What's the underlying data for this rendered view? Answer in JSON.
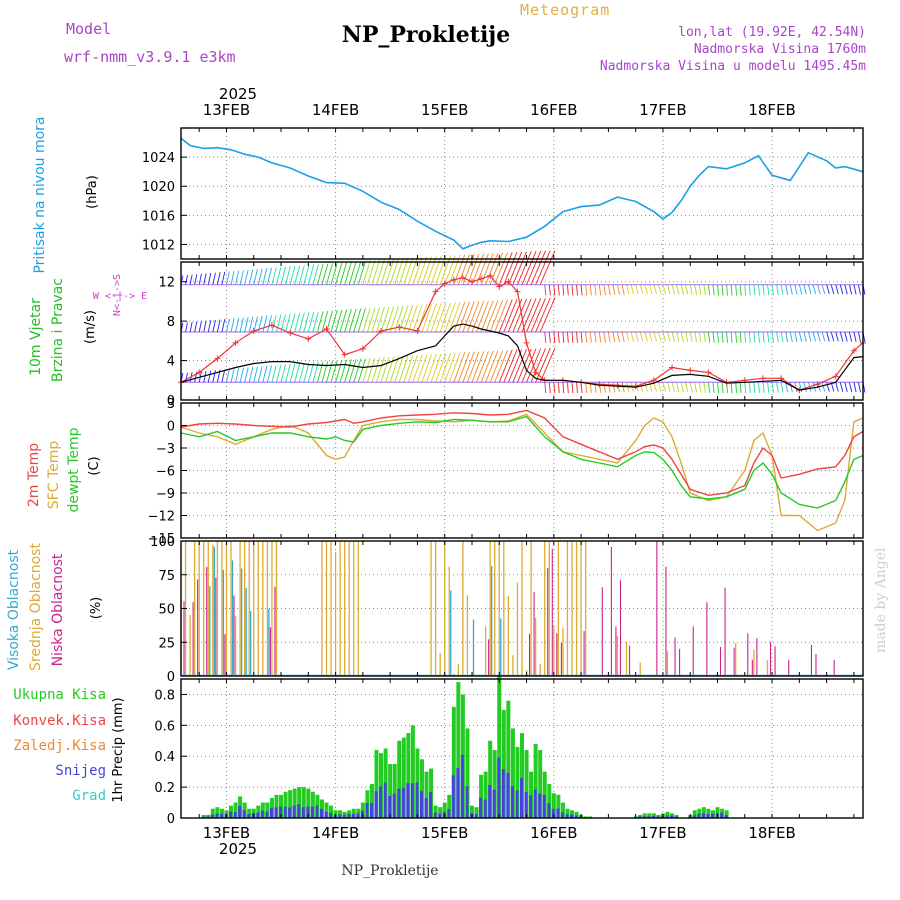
{
  "header": {
    "title": "NP_Prokletije",
    "product": "Meteogram",
    "model_label": "Model",
    "model_name": "wrf-nmm_v3.9.1 e3km",
    "lonlat": "lon,lat (19.92E, 42.54N)",
    "elevation": "Nadmorska Visina 1760m",
    "model_elevation": "Nadmorska Visina u modelu 1495.45m",
    "year_top": "2025",
    "year_bottom": "2025",
    "footer": "NP_Prokletije",
    "watermark": "made by Angel"
  },
  "colors": {
    "pressure": "#1aa0e6",
    "wind_label": "#22c022",
    "wind_dir_label": "#cc44cc",
    "temp2m": "#ee4444",
    "sfc": "#ddaa33",
    "dewpt": "#22cc22",
    "high_cloud": "#33aacc",
    "mid_cloud": "#ddaa33",
    "low_cloud": "#cc2288",
    "total_precip": "#22cc22",
    "conv_precip": "#ee4444",
    "frozen_precip": "#ee8833",
    "snow": "#4444dd",
    "hail": "#33cccc",
    "purple_text": "#aa44cc",
    "orange_text": "#e0b040"
  },
  "chart_data": [
    {
      "type": "line",
      "name": "pressure",
      "ylabel": "Pritisak na nivou mora",
      "unit": "(hPa)",
      "ylim": [
        1010,
        1028
      ],
      "yticks": [
        1012,
        1016,
        1020,
        1024
      ],
      "x_days": [
        "13FEB",
        "14FEB",
        "15FEB",
        "16FEB",
        "17FEB",
        "18FEB"
      ],
      "x": [
        0,
        2,
        5,
        8,
        11,
        14,
        17,
        20,
        24,
        28,
        32,
        36,
        40,
        44,
        48,
        52,
        56,
        60,
        62,
        64,
        66,
        68,
        72,
        76,
        80,
        84,
        88,
        92,
        96,
        100,
        104,
        106,
        108,
        110,
        112,
        114,
        116,
        120,
        124,
        127,
        130,
        134,
        138,
        142,
        144,
        146,
        150
      ],
      "values": [
        1026.6,
        1025.6,
        1025.2,
        1025.3,
        1025.0,
        1024.4,
        1024.0,
        1023.2,
        1022.5,
        1021.4,
        1020.5,
        1020.4,
        1019.3,
        1017.8,
        1016.8,
        1015.2,
        1013.8,
        1012.6,
        1011.4,
        1011.9,
        1012.3,
        1012.5,
        1012.4,
        1013.0,
        1014.5,
        1016.5,
        1017.2,
        1017.4,
        1018.5,
        1017.9,
        1016.5,
        1015.5,
        1016.4,
        1018.0,
        1020.0,
        1021.5,
        1022.7,
        1022.4,
        1023.2,
        1024.2,
        1021.5,
        1020.8,
        1024.6,
        1023.5,
        1022.5,
        1022.7,
        1022.0
      ]
    },
    {
      "type": "line",
      "name": "wind",
      "ylabel1": "10m Vjetar",
      "ylabel2": "Brzina i Pravac",
      "unit": "(m/s)",
      "direction_legend": "W <-|-> E",
      "direction_legend_v": "N<-|->S",
      "ylim": [
        0,
        14
      ],
      "yticks": [
        0,
        4,
        8,
        12
      ],
      "x": [
        0,
        4,
        8,
        12,
        16,
        20,
        24,
        28,
        32,
        36,
        40,
        44,
        48,
        52,
        56,
        58,
        60,
        62,
        64,
        66,
        68,
        70,
        72,
        74,
        76,
        78,
        80,
        84,
        88,
        92,
        96,
        100,
        104,
        108,
        112,
        116,
        120,
        124,
        128,
        132,
        136,
        140,
        144,
        148,
        150
      ],
      "speed": [
        1.8,
        2.3,
        2.8,
        3.3,
        3.7,
        3.9,
        3.9,
        3.6,
        3.5,
        3.6,
        3.3,
        3.5,
        4.2,
        5.0,
        5.5,
        6.5,
        7.5,
        7.7,
        7.5,
        7.2,
        7.0,
        6.8,
        6.5,
        5.5,
        3.0,
        2.2,
        2.0,
        2.0,
        1.8,
        1.5,
        1.4,
        1.3,
        1.7,
        2.5,
        2.6,
        2.4,
        1.7,
        1.8,
        1.9,
        2.0,
        1.0,
        1.3,
        1.8,
        4.3,
        4.4
      ],
      "gust": [
        1.8,
        2.8,
        4.2,
        5.8,
        7.0,
        7.6,
        6.8,
        6.2,
        7.2,
        4.6,
        5.2,
        7.0,
        7.4,
        7.0,
        11.0,
        11.8,
        12.2,
        12.4,
        12.0,
        12.3,
        12.6,
        11.5,
        12.0,
        11.0,
        5.8,
        2.8,
        2.0,
        2.0,
        1.8,
        1.6,
        1.5,
        1.4,
        2.0,
        3.3,
        3.0,
        2.8,
        1.8,
        2.0,
        2.2,
        2.2,
        1.0,
        1.6,
        2.4,
        5.0,
        5.8
      ]
    },
    {
      "type": "line",
      "name": "temperature",
      "labels": [
        "2m Temp",
        "SFC Temp",
        "dewpt Temp"
      ],
      "unit": "(C)",
      "ylim": [
        -15,
        3
      ],
      "yticks": [
        -15,
        -12,
        -9,
        -6,
        -3,
        0,
        3
      ],
      "x": [
        0,
        4,
        8,
        12,
        16,
        20,
        24,
        28,
        32,
        34,
        36,
        38,
        40,
        44,
        48,
        52,
        56,
        60,
        64,
        68,
        72,
        76,
        80,
        84,
        88,
        92,
        96,
        100,
        102,
        104,
        106,
        108,
        110,
        112,
        116,
        120,
        124,
        126,
        128,
        130,
        132,
        136,
        140,
        144,
        146,
        148,
        150
      ],
      "temp2m": [
        -0.2,
        0.2,
        0.3,
        0.2,
        0.0,
        -0.1,
        -0.2,
        0.2,
        0.4,
        0.6,
        0.8,
        0.3,
        0.5,
        1.0,
        1.3,
        1.4,
        1.5,
        1.7,
        1.6,
        1.4,
        1.5,
        2.0,
        1.0,
        -1.5,
        -2.5,
        -3.5,
        -4.5,
        -3.5,
        -2.8,
        -2.6,
        -3.0,
        -4.5,
        -6.5,
        -8.5,
        -9.3,
        -9.0,
        -8.0,
        -5.0,
        -3.0,
        -4.0,
        -7.0,
        -6.5,
        -5.8,
        -5.5,
        -4.0,
        -1.5,
        -0.8
      ],
      "sfc": [
        -0.2,
        -1.0,
        -1.5,
        -2.5,
        -1.5,
        -0.5,
        0.0,
        -1.0,
        -4.0,
        -4.5,
        -4.2,
        -2.0,
        0.0,
        0.5,
        0.8,
        0.8,
        0.6,
        0.5,
        0.7,
        0.5,
        0.6,
        1.5,
        -1.0,
        -3.5,
        -4.0,
        -4.5,
        -5.0,
        -2.0,
        0.0,
        1.0,
        0.5,
        -1.5,
        -5.0,
        -9.0,
        -10.0,
        -9.5,
        -6.0,
        -2.0,
        -1.0,
        -4.0,
        -12.0,
        -12.0,
        -14.0,
        -13.0,
        -10.0,
        0.5,
        1.0
      ],
      "dewpt": [
        -1.0,
        -1.5,
        -0.8,
        -2.0,
        -1.5,
        -1.0,
        -1.0,
        -1.5,
        -1.8,
        -1.5,
        -2.0,
        -2.2,
        -0.5,
        0.0,
        0.3,
        0.5,
        0.4,
        0.8,
        0.7,
        0.5,
        0.5,
        1.2,
        -1.5,
        -3.5,
        -4.5,
        -5.0,
        -5.5,
        -4.0,
        -3.5,
        -3.6,
        -4.5,
        -6.0,
        -8.0,
        -9.5,
        -9.8,
        -9.5,
        -8.5,
        -6.0,
        -5.0,
        -6.5,
        -9.0,
        -10.5,
        -11.0,
        -10.0,
        -7.5,
        -4.5,
        -4.0
      ]
    },
    {
      "type": "bar",
      "name": "clouds",
      "labels": [
        "Visoka Oblacnost",
        "Srednja Oblacnost",
        "Niska Oblacnost"
      ],
      "unit": "(%)",
      "ylim": [
        0,
        100
      ],
      "yticks": [
        0,
        25,
        50,
        75,
        100
      ]
    },
    {
      "type": "bar",
      "name": "precipitation",
      "labels": [
        "Ukupna Kisa",
        "Konvek.Kisa",
        "Zaledj.Kisa",
        "Snijeg",
        "Grad"
      ],
      "unit": "1hr Precip (mm)",
      "ylim": [
        0,
        0.9
      ],
      "yticks": [
        0,
        0.2,
        0.4,
        0.6,
        0.8
      ],
      "x": [
        5,
        6,
        7,
        8,
        9,
        10,
        11,
        12,
        13,
        14,
        15,
        16,
        17,
        18,
        19,
        20,
        21,
        22,
        23,
        24,
        25,
        26,
        27,
        28,
        29,
        30,
        31,
        32,
        33,
        34,
        35,
        36,
        37,
        38,
        39,
        40,
        41,
        42,
        43,
        44,
        45,
        46,
        47,
        48,
        49,
        50,
        51,
        52,
        53,
        54,
        55,
        56,
        57,
        58,
        59,
        60,
        61,
        62,
        63,
        64,
        65,
        66,
        67,
        68,
        69,
        70,
        71,
        72,
        73,
        74,
        75,
        76,
        77,
        78,
        79,
        80,
        81,
        82,
        83,
        84,
        85,
        86,
        87,
        88,
        89,
        90,
        91,
        92,
        93,
        94,
        95,
        96,
        97,
        98,
        99,
        100,
        101,
        102,
        103,
        104,
        105,
        106,
        107,
        108,
        109,
        110,
        111,
        112,
        113,
        114,
        115,
        116,
        117,
        118,
        119,
        120
      ],
      "total": [
        0.02,
        0.02,
        0.06,
        0.07,
        0.06,
        0.05,
        0.08,
        0.1,
        0.14,
        0.1,
        0.06,
        0.06,
        0.08,
        0.1,
        0.1,
        0.13,
        0.15,
        0.15,
        0.17,
        0.18,
        0.19,
        0.2,
        0.2,
        0.19,
        0.17,
        0.15,
        0.12,
        0.1,
        0.08,
        0.05,
        0.05,
        0.04,
        0.05,
        0.06,
        0.06,
        0.1,
        0.18,
        0.22,
        0.44,
        0.42,
        0.45,
        0.35,
        0.35,
        0.5,
        0.52,
        0.55,
        0.6,
        0.45,
        0.38,
        0.3,
        0.32,
        0.08,
        0.07,
        0.1,
        0.15,
        0.72,
        0.88,
        0.8,
        0.58,
        0.08,
        0.07,
        0.28,
        0.3,
        0.5,
        0.44,
        0.92,
        0.7,
        0.76,
        0.58,
        0.46,
        0.55,
        0.44,
        0.3,
        0.48,
        0.44,
        0.3,
        0.22,
        0.16,
        0.15,
        0.1,
        0.06,
        0.05,
        0.04,
        0.02,
        0.01,
        0.01,
        0.0,
        0.0,
        0.0,
        0.0,
        0.0,
        0.0,
        0.0,
        0.0,
        0.0,
        0.01,
        0.02,
        0.03,
        0.03,
        0.03,
        0.02,
        0.03,
        0.04,
        0.03,
        0.02,
        0.0,
        0.0,
        0.02,
        0.05,
        0.06,
        0.07,
        0.06,
        0.05,
        0.07,
        0.06,
        0.05
      ]
    }
  ]
}
